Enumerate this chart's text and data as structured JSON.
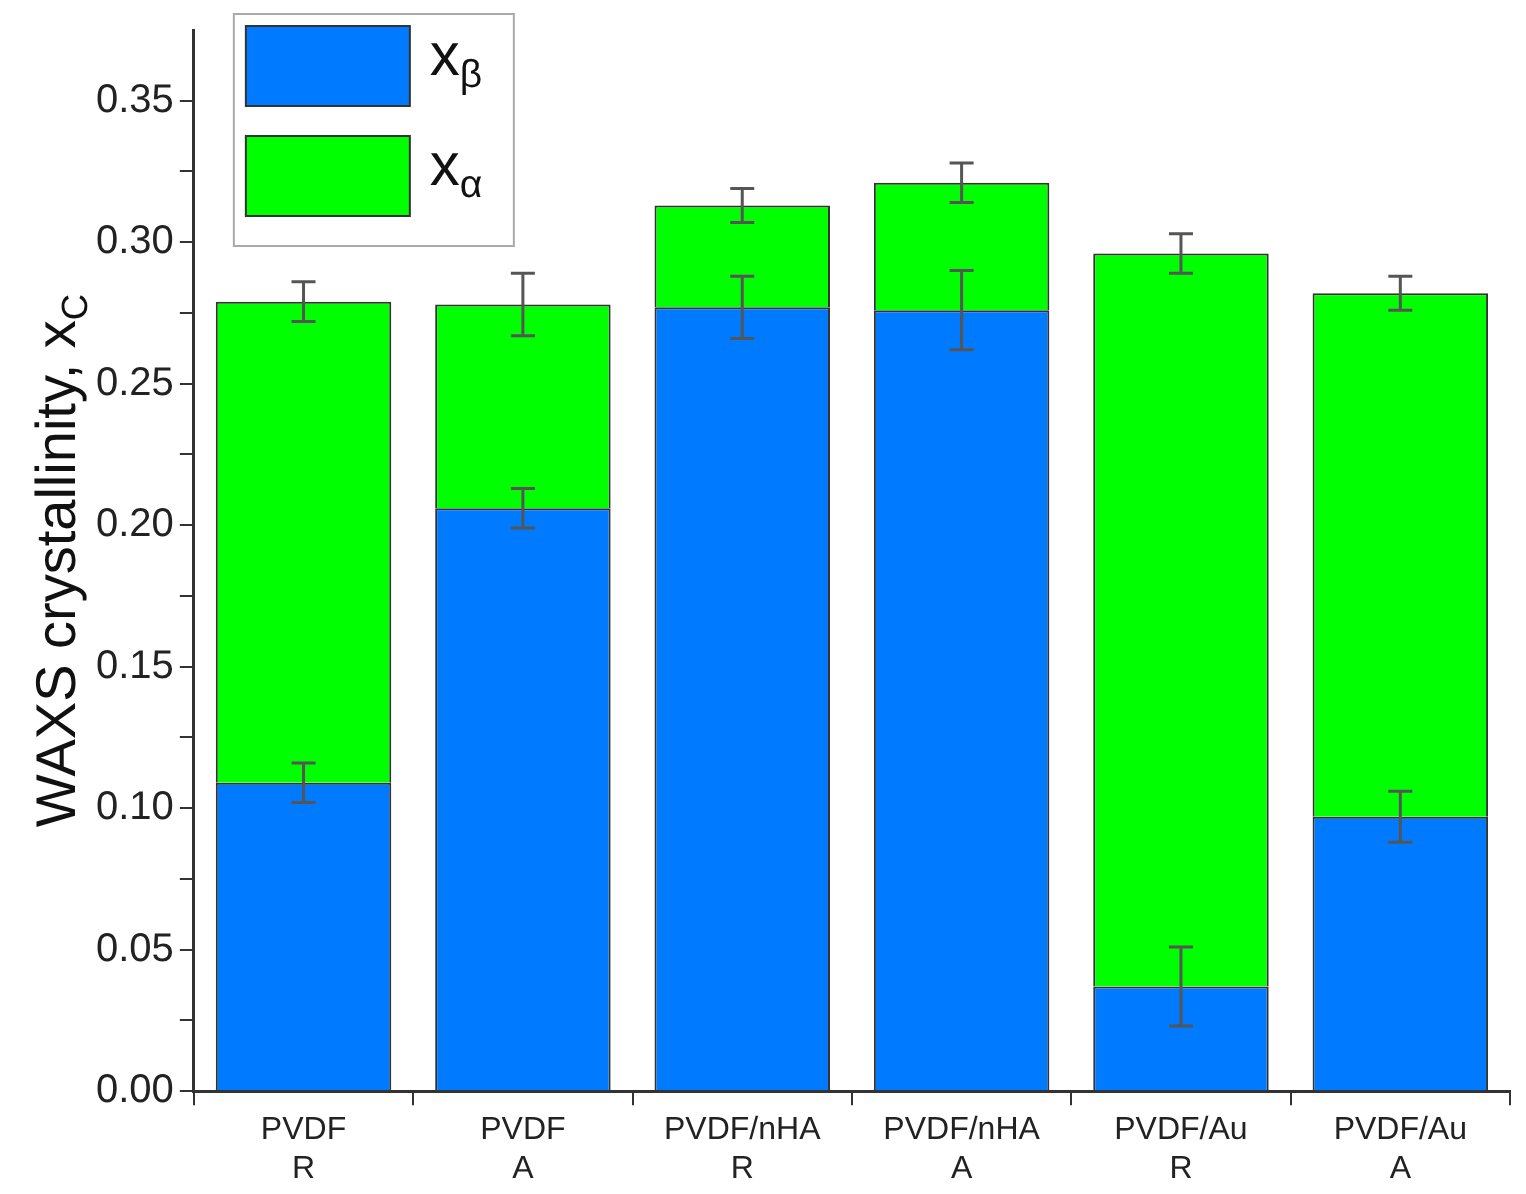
{
  "chart_data": {
    "type": "bar",
    "stacked": true,
    "ylabel": "WAXS crystallinity, x$_{C}$",
    "categories": [
      "PVDF\nR",
      "PVDF\nA",
      "PVDF/nHA\nR",
      "PVDF/nHA\nA",
      "PVDF/Au\nR",
      "PVDF/Au\nA"
    ],
    "series": [
      {
        "name": "x$_{β}$",
        "color": "#007bff",
        "values": [
          0.109,
          0.206,
          0.277,
          0.276,
          0.037,
          0.097
        ],
        "errors": [
          0.007,
          0.007,
          0.011,
          0.014,
          0.014,
          0.009
        ]
      },
      {
        "name": "x$_{α}$",
        "color": "#00ff00",
        "values": [
          0.17,
          0.072,
          0.036,
          0.045,
          0.259,
          0.185
        ],
        "errors": [
          0.007,
          0.011,
          0.006,
          0.007,
          0.007,
          0.006
        ]
      }
    ],
    "ylim": [
      0,
      0.375
    ],
    "yticks": [
      {
        "value": 0,
        "label": "0.00"
      },
      {
        "value": 0.025,
        "label": null
      },
      0.05,
      {
        "value": 0.075,
        "label": null
      },
      {
        "value": 0.1,
        "label": "0.10"
      },
      {
        "value": 0.125,
        "label": null
      },
      0.15,
      {
        "value": 0.175,
        "label": null
      },
      {
        "value": 0.2,
        "label": "0.20"
      },
      {
        "value": 0.225,
        "label": null
      },
      0.25,
      {
        "value": 0.275,
        "label": null
      },
      {
        "value": 0.3,
        "label": "0.30"
      },
      {
        "value": 0.325,
        "label": null
      },
      0.35
    ],
    "legend": "top left"
  }
}
